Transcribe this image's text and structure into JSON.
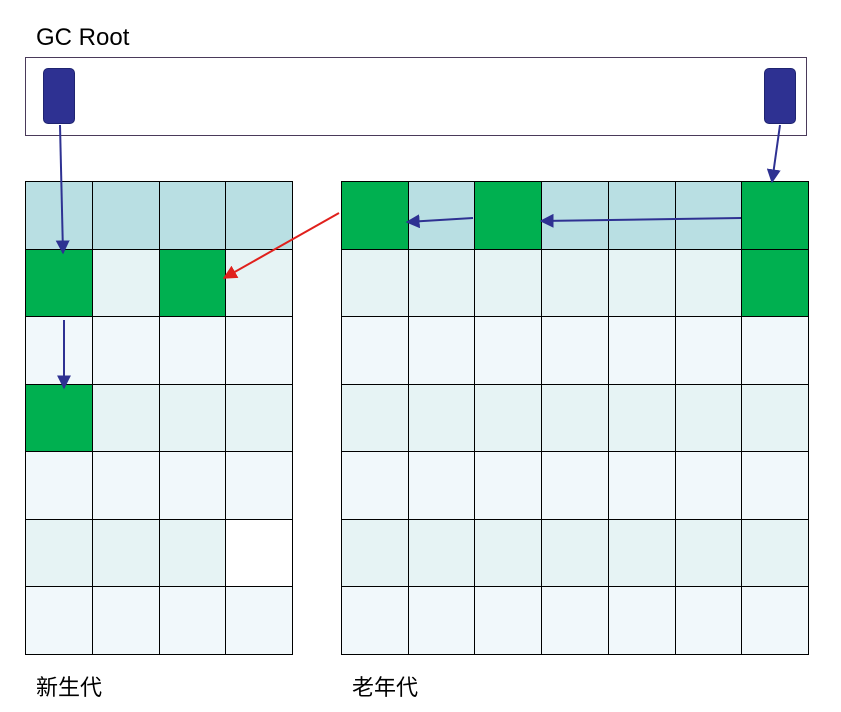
{
  "title": "GC Root",
  "colors": {
    "live": "#00b050",
    "header": "#b9dfe3",
    "light": "#e6f3f4",
    "lighter": "#f1f8fb",
    "white": "#ffffff",
    "root_handle": "#2e3192",
    "ref_arrow": "#2e3192",
    "cross_gen_arrow": "#e0201c"
  },
  "young_generation": {
    "label": "新生代",
    "columns": 4,
    "rows": [
      [
        "header",
        "header",
        "header",
        "header"
      ],
      [
        "live",
        "light",
        "live",
        "light"
      ],
      [
        "lighter",
        "lighter",
        "lighter",
        "lighter"
      ],
      [
        "live",
        "light",
        "light",
        "light"
      ],
      [
        "lighter",
        "lighter",
        "lighter",
        "lighter"
      ],
      [
        "light",
        "light",
        "light",
        "white"
      ],
      [
        "lighter",
        "lighter",
        "lighter",
        "lighter"
      ]
    ]
  },
  "old_generation": {
    "label": "老年代",
    "columns": 7,
    "rows": [
      [
        "live",
        "header",
        "live",
        "header",
        "header",
        "header",
        "live"
      ],
      [
        "light",
        "light",
        "light",
        "light",
        "light",
        "light",
        "live"
      ],
      [
        "lighter",
        "lighter",
        "lighter",
        "lighter",
        "lighter",
        "lighter",
        "lighter"
      ],
      [
        "light",
        "light",
        "light",
        "light",
        "light",
        "light",
        "light"
      ],
      [
        "lighter",
        "lighter",
        "lighter",
        "lighter",
        "lighter",
        "lighter",
        "lighter"
      ],
      [
        "light",
        "light",
        "light",
        "light",
        "light",
        "light",
        "light"
      ],
      [
        "lighter",
        "lighter",
        "lighter",
        "lighter",
        "lighter",
        "lighter",
        "lighter"
      ]
    ]
  }
}
